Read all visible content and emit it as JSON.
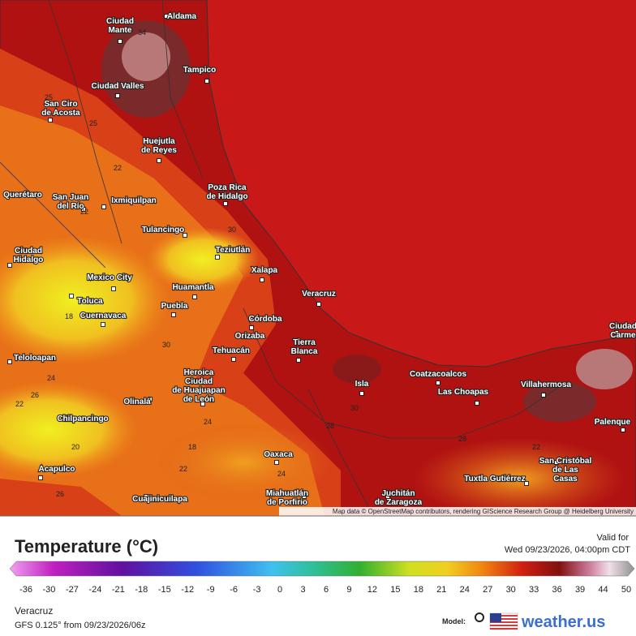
{
  "map": {
    "cities": [
      {
        "lines": [
          "Aldama"
        ]
      },
      {
        "lines": [
          "Ciudad",
          "Mante"
        ]
      },
      {
        "lines": [
          "Tampico"
        ]
      },
      {
        "lines": [
          "Ciudad Valles"
        ]
      },
      {
        "lines": [
          "San Ciro",
          "de Acosta"
        ]
      },
      {
        "lines": [
          "Huejutla",
          "de Reyes"
        ]
      },
      {
        "lines": [
          "Poza Rica",
          "de Hidalgo"
        ]
      },
      {
        "lines": [
          "Querétaro"
        ]
      },
      {
        "lines": [
          "San Juan",
          "del Río"
        ]
      },
      {
        "lines": [
          "Ixmiquilpan"
        ]
      },
      {
        "lines": [
          "Tulancingo"
        ]
      },
      {
        "lines": [
          "Teziutlán"
        ]
      },
      {
        "lines": [
          "Ciudad",
          "Hidalgo"
        ]
      },
      {
        "lines": [
          "Xalapa"
        ]
      },
      {
        "lines": [
          "Mexico City"
        ]
      },
      {
        "lines": [
          "Huamantla"
        ]
      },
      {
        "lines": [
          "Veracruz"
        ]
      },
      {
        "lines": [
          "Toluca"
        ]
      },
      {
        "lines": [
          "Puebla"
        ]
      },
      {
        "lines": [
          "Cuernavaca"
        ]
      },
      {
        "lines": [
          "Córdoba"
        ]
      },
      {
        "lines": [
          "Orizaba"
        ]
      },
      {
        "lines": [
          "Tierra",
          "Blanca"
        ]
      },
      {
        "lines": [
          "Tehuacán"
        ]
      },
      {
        "lines": [
          "Teloloapan"
        ]
      },
      {
        "lines": [
          "Heroica",
          "Ciudad",
          "de Huajuapan",
          "de León"
        ]
      },
      {
        "lines": [
          "Coatzacoalcos"
        ]
      },
      {
        "lines": [
          "Isla"
        ]
      },
      {
        "lines": [
          "Villahermosa"
        ]
      },
      {
        "lines": [
          "Las Choapas"
        ]
      },
      {
        "lines": [
          "Olinalá"
        ]
      },
      {
        "lines": [
          "Palenque"
        ]
      },
      {
        "lines": [
          "Chilpancingo"
        ]
      },
      {
        "lines": [
          "Oaxaca"
        ]
      },
      {
        "lines": [
          "San Cristóbal",
          "de Las",
          "Casas"
        ]
      },
      {
        "lines": [
          "Acapulco"
        ]
      },
      {
        "lines": [
          "Tuxtla Gutiérrez"
        ]
      },
      {
        "lines": [
          "Juchitán",
          "de Zaragoza"
        ]
      },
      {
        "lines": [
          "Miahuatlán",
          "de Porfirio"
        ]
      },
      {
        "lines": [
          "Cuajinicuilapa"
        ]
      },
      {
        "lines": [
          "Ciudad",
          "Carme"
        ]
      }
    ],
    "contour_labels": [
      "34",
      "25",
      "25",
      "22",
      "22",
      "30",
      "18",
      "30",
      "24",
      "26",
      "22",
      "24",
      "20",
      "18",
      "28",
      "30",
      "28",
      "22",
      "24",
      "22",
      "26"
    ],
    "attribution": "Map data © OpenStreetMap contributors, rendering GIScience Research Group @ Heidelberg University"
  },
  "legend": {
    "title": "Temperature (°C)",
    "valid_label": "Valid for",
    "valid_time": "Wed 09/23/2026, 04:00pm CDT",
    "ticks": [
      -36,
      -30,
      -27,
      -24,
      -21,
      -18,
      -15,
      -12,
      -9,
      -6,
      -3,
      0,
      3,
      6,
      9,
      12,
      15,
      18,
      21,
      24,
      27,
      30,
      33,
      36,
      39,
      44,
      50
    ]
  },
  "footer": {
    "location": "Veracruz",
    "model_run": "GFS 0.125° from 09/23/2026/06z",
    "model_label": "Model:",
    "brand": "weather.us"
  }
}
